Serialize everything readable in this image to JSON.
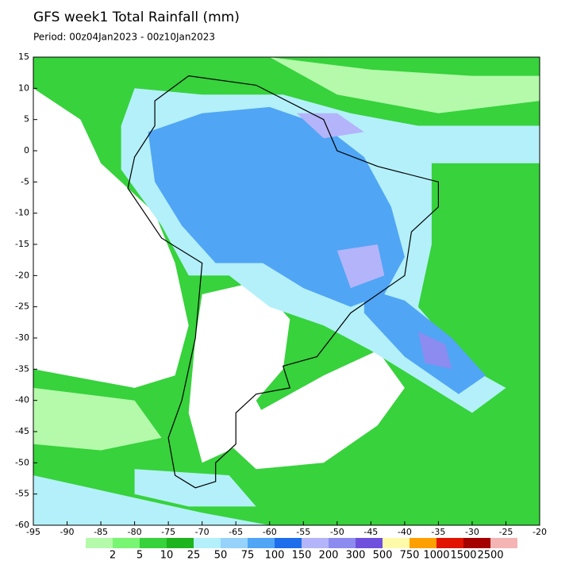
{
  "header": {
    "title": "GFS week1 Total Rainfall (mm)",
    "period": "Period: 00z04Jan2023 - 00z10Jan2023"
  },
  "map": {
    "lon_ticks": [
      -95,
      -90,
      -85,
      -80,
      -75,
      -70,
      -65,
      -60,
      -55,
      -50,
      -45,
      -40,
      -35,
      -30,
      -25,
      -20
    ],
    "lat_ticks": [
      15,
      10,
      5,
      0,
      -5,
      -10,
      -15,
      -20,
      -25,
      -30,
      -35,
      -40,
      -45,
      -50,
      -55,
      -60
    ],
    "lon_range": [
      -95,
      -20
    ],
    "lat_range": [
      15,
      -60
    ]
  },
  "colorbar": {
    "levels": [
      2,
      5,
      10,
      25,
      50,
      75,
      100,
      150,
      200,
      300,
      500,
      750,
      1000,
      1500,
      2500
    ],
    "colors": [
      "#b4faaa",
      "#78f573",
      "#37d23c",
      "#1eb41e",
      "#b4f0fa",
      "#96d2fa",
      "#50a5f5",
      "#1e6eeb",
      "#b4b4fa",
      "#8c8cf0",
      "#6e50dc",
      "#fffaaa",
      "#ffa000",
      "#e11400",
      "#a50000",
      "#f5b4b4"
    ]
  }
}
